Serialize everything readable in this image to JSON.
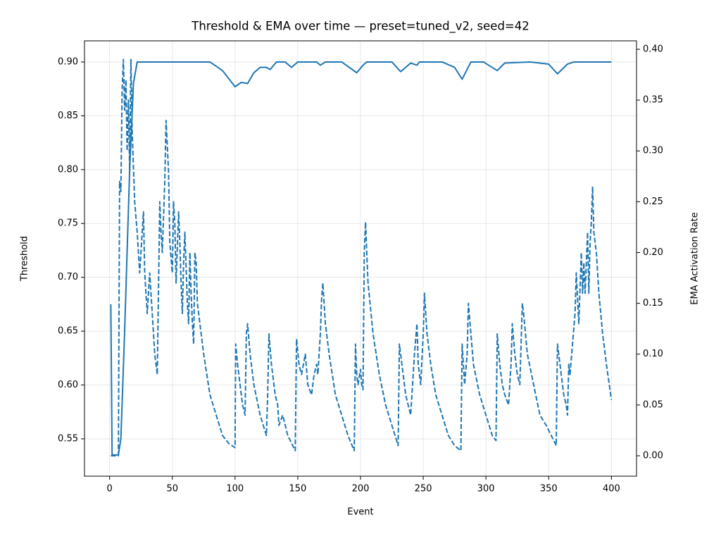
{
  "chart_data": {
    "type": "line",
    "title": "Threshold & EMA over time — preset=tuned_v2, seed=42",
    "xlabel": "Event",
    "ylabel": "Threshold",
    "y2label": "EMA Activation Rate",
    "xlim": [
      -20,
      420
    ],
    "xticks": [
      0,
      50,
      100,
      150,
      200,
      250,
      300,
      350,
      400
    ],
    "ylim": [
      0.5153,
      0.9196
    ],
    "yticks": [
      0.55,
      {
        "value": 0.6,
        "label": "0.60"
      },
      0.65,
      {
        "value": 0.7,
        "label": "0.70"
      },
      0.75,
      {
        "value": 0.8,
        "label": "0.80"
      },
      0.85,
      {
        "value": 0.9,
        "label": "0.90"
      }
    ],
    "y2lim": [
      -0.0201,
      0.4083
    ],
    "y2ticks": [
      {
        "value": 0,
        "label": "0.00"
      },
      0.05,
      {
        "value": 0.1,
        "label": "0.10"
      },
      0.15,
      {
        "value": 0.2,
        "label": "0.20"
      },
      0.25,
      {
        "value": 0.3,
        "label": "0.30"
      },
      0.35,
      {
        "value": 0.4,
        "label": "0.40"
      }
    ],
    "grid": true,
    "series": [
      {
        "color": "#1f77b4",
        "linestyle": "solid",
        "x": [
          1,
          2,
          7,
          9,
          12,
          16,
          19,
          22,
          80,
          90,
          100,
          105,
          110,
          115,
          120,
          125,
          128,
          133,
          140,
          145,
          150,
          165,
          168,
          172,
          185,
          197,
          202,
          205,
          225,
          232,
          240,
          245,
          247,
          265,
          275,
          281,
          288,
          298,
          309,
          315,
          335,
          350,
          357,
          365,
          370,
          400
        ],
        "values": [
          0.675,
          0.535,
          0.535,
          0.55,
          0.65,
          0.8,
          0.88,
          0.9,
          0.9,
          0.892,
          0.877,
          0.881,
          0.88,
          0.89,
          0.895,
          0.895,
          0.893,
          0.9,
          0.9,
          0.895,
          0.9,
          0.9,
          0.897,
          0.9,
          0.9,
          0.89,
          0.897,
          0.9,
          0.9,
          0.891,
          0.899,
          0.897,
          0.9,
          0.9,
          0.895,
          0.884,
          0.9,
          0.9,
          0.892,
          0.899,
          0.9,
          0.898,
          0.889,
          0.898,
          0.9,
          0.9
        ]
      },
      {
        "color": "#1f77b4",
        "linestyle": "dashed",
        "axis": "y2",
        "x": [
          1,
          7,
          8,
          9,
          10,
          11,
          12,
          13,
          14,
          15,
          16,
          17,
          18,
          20,
          22,
          24,
          26,
          27,
          28,
          30,
          32,
          34,
          36,
          38,
          40,
          41,
          42,
          44,
          45,
          47,
          48,
          50,
          51,
          52,
          53,
          55,
          56,
          57,
          58,
          59,
          60,
          62,
          63,
          64,
          65,
          66,
          67,
          68,
          69,
          70,
          75,
          80,
          85,
          90,
          95,
          100,
          100.5,
          102,
          104,
          106,
          108,
          109,
          110,
          112,
          115,
          120,
          125,
          126,
          127,
          129,
          132,
          134,
          135,
          138,
          142,
          146,
          148,
          149,
          151,
          153,
          156,
          158,
          161,
          163,
          165,
          166,
          167,
          168,
          169,
          170,
          172,
          175,
          180,
          185,
          190,
          195,
          196,
          197,
          198,
          200,
          201,
          202,
          203,
          204,
          206,
          210,
          215,
          220,
          225,
          230,
          231,
          232,
          234,
          236,
          240,
          243,
          245,
          246,
          248,
          250,
          251,
          253,
          256,
          260,
          265,
          270,
          275,
          280,
          281,
          282,
          283,
          285,
          286,
          288,
          290,
          295,
          300,
          305,
          308,
          309,
          311,
          313,
          315,
          318,
          320,
          321,
          323,
          325,
          327,
          329,
          330,
          333,
          338,
          343,
          348,
          352,
          356,
          357,
          358,
          360,
          362,
          364,
          365,
          366,
          367,
          369,
          371,
          372,
          374,
          376,
          377,
          378,
          379,
          381,
          382,
          383,
          384,
          385,
          386,
          388,
          390,
          393,
          396,
          400
        ],
        "values": [
          0,
          0,
          0.27,
          0.26,
          0.36,
          0.39,
          0.34,
          0.37,
          0.3,
          0.35,
          0.28,
          0.39,
          0.32,
          0.25,
          0.22,
          0.18,
          0.22,
          0.24,
          0.18,
          0.14,
          0.18,
          0.14,
          0.1,
          0.08,
          0.25,
          0.22,
          0.2,
          0.27,
          0.33,
          0.28,
          0.21,
          0.18,
          0.25,
          0.23,
          0.17,
          0.24,
          0.21,
          0.17,
          0.14,
          0.19,
          0.22,
          0.15,
          0.13,
          0.2,
          0.16,
          0.13,
          0.11,
          0.2,
          0.19,
          0.15,
          0.1,
          0.06,
          0.04,
          0.02,
          0.012,
          0.008,
          0.11,
          0.09,
          0.07,
          0.05,
          0.04,
          0.12,
          0.13,
          0.1,
          0.07,
          0.04,
          0.02,
          0.06,
          0.12,
          0.09,
          0.06,
          0.05,
          0.03,
          0.04,
          0.02,
          0.01,
          0.005,
          0.115,
          0.09,
          0.08,
          0.1,
          0.07,
          0.06,
          0.08,
          0.09,
          0.08,
          0.1,
          0.12,
          0.155,
          0.17,
          0.13,
          0.1,
          0.06,
          0.04,
          0.02,
          0.005,
          0.11,
          0.08,
          0.07,
          0.085,
          0.07,
          0.065,
          0.2,
          0.23,
          0.17,
          0.12,
          0.08,
          0.05,
          0.03,
          0.01,
          0.11,
          0.1,
          0.08,
          0.06,
          0.04,
          0.1,
          0.13,
          0.09,
          0.07,
          0.12,
          0.16,
          0.12,
          0.09,
          0.06,
          0.04,
          0.02,
          0.01,
          0.005,
          0.11,
          0.09,
          0.07,
          0.1,
          0.15,
          0.12,
          0.09,
          0.06,
          0.04,
          0.02,
          0.015,
          0.12,
          0.09,
          0.07,
          0.06,
          0.05,
          0.09,
          0.13,
          0.1,
          0.08,
          0.07,
          0.15,
          0.14,
          0.1,
          0.07,
          0.04,
          0.03,
          0.02,
          0.01,
          0.11,
          0.1,
          0.08,
          0.06,
          0.05,
          0.04,
          0.09,
          0.08,
          0.11,
          0.14,
          0.18,
          0.13,
          0.2,
          0.16,
          0.19,
          0.16,
          0.22,
          0.16,
          0.21,
          0.23,
          0.265,
          0.22,
          0.2,
          0.16,
          0.12,
          0.09,
          0.055
        ]
      }
    ]
  }
}
